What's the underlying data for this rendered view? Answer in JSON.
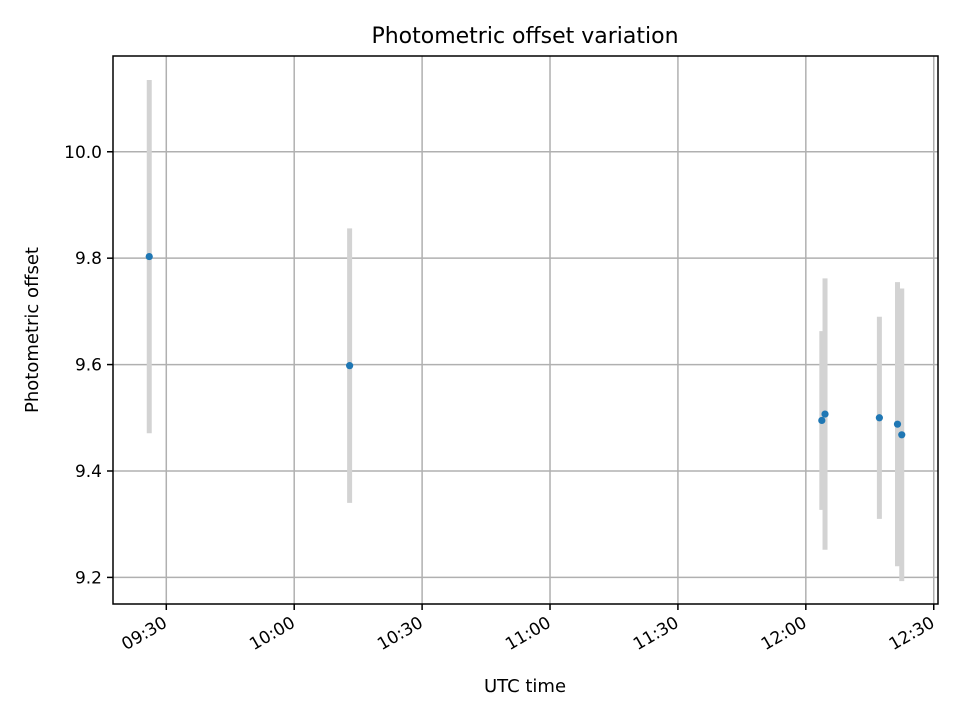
{
  "chart_data": {
    "type": "scatter",
    "title": "Photometric offset variation",
    "xlabel": "UTC time",
    "ylabel": "Photometric offset",
    "x_ticks": [
      "09:30",
      "10:00",
      "10:30",
      "11:00",
      "11:30",
      "12:00",
      "12:30"
    ],
    "y_ticks": [
      "9.2",
      "9.4",
      "9.6",
      "9.8",
      "10.0"
    ],
    "xlim": [
      "09:17:30",
      "12:31:00"
    ],
    "ylim": [
      9.15,
      10.18
    ],
    "grid": true,
    "colors": {
      "point": "#1f77b4",
      "errorbar": "#d3d3d3"
    },
    "series": [
      {
        "points": [
          {
            "x": "09:26:00",
            "y": 9.803,
            "err": 0.332
          },
          {
            "x": "10:13:00",
            "y": 9.598,
            "err": 0.258
          },
          {
            "x": "12:03:45",
            "y": 9.495,
            "err": 0.168
          },
          {
            "x": "12:04:30",
            "y": 9.507,
            "err": 0.255
          },
          {
            "x": "12:17:15",
            "y": 9.5,
            "err": 0.19
          },
          {
            "x": "12:21:30",
            "y": 9.488,
            "err": 0.267
          },
          {
            "x": "12:22:30",
            "y": 9.468,
            "err": 0.275
          }
        ]
      }
    ]
  }
}
